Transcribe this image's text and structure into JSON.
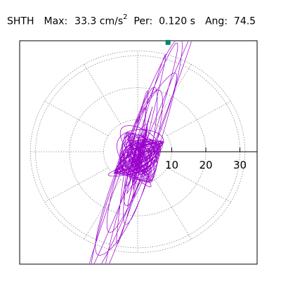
{
  "header": {
    "station": "SHTH",
    "max_label": "Max:",
    "max_value": "33.3 cm/s",
    "max_exponent": "2",
    "per_label": "Per:",
    "per_value": "0.120 s",
    "ang_label": "Ang:",
    "ang_value": "74.5"
  },
  "colors": {
    "trace": "#9900cc",
    "marker": "#008866",
    "grid": "#888888",
    "axis": "#000000"
  },
  "chart_data": {
    "type": "polar-particle-motion",
    "radial_ticks": [
      10,
      20,
      30
    ],
    "radial_max": 35,
    "radial_spokes_deg": 30,
    "grid": true,
    "peak_marker": {
      "r": 33.3,
      "azimuth_deg": 74.5
    },
    "trace_axis_deg": 74.5,
    "trace_note": "dense looping particle-motion trace elongated along the max direction"
  }
}
